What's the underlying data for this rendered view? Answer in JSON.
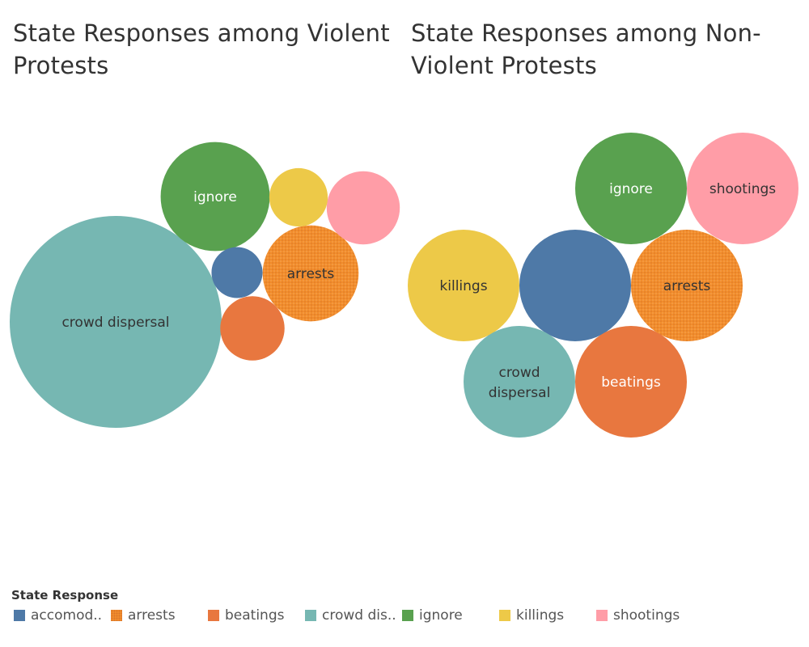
{
  "titles": {
    "left": "State Responses among Violent Protests",
    "right": "State Responses among Non-Violent Protests"
  },
  "legend": {
    "title": "State Response",
    "items": [
      {
        "key": "accomodation",
        "label": "accomod..",
        "color": "#4e79a7",
        "pattern": false
      },
      {
        "key": "arrests",
        "label": "arrests",
        "color": "#f28e2b",
        "pattern": true
      },
      {
        "key": "beatings",
        "label": "beatings",
        "color": "#e8773f",
        "pattern": false
      },
      {
        "key": "crowd dispersal",
        "label": "crowd dis..",
        "color": "#76b7b2",
        "pattern": false
      },
      {
        "key": "ignore",
        "label": "ignore",
        "color": "#59a14f",
        "pattern": false
      },
      {
        "key": "killings",
        "label": "killings",
        "color": "#edc948",
        "pattern": false
      },
      {
        "key": "shootings",
        "label": "shootings",
        "color": "#ff9da7",
        "pattern": false
      }
    ]
  },
  "chart_data": [
    {
      "type": "bubble",
      "title": "State Responses among Violent Protests",
      "series": [
        {
          "category": "crowd dispersal",
          "value": 1.0,
          "label": "crowd dispersal"
        },
        {
          "category": "ignore",
          "value": 0.265,
          "label": "ignore"
        },
        {
          "category": "arrests",
          "value": 0.205,
          "label": "arrests"
        },
        {
          "category": "shootings",
          "value": 0.119,
          "label": ""
        },
        {
          "category": "beatings",
          "value": 0.092,
          "label": ""
        },
        {
          "category": "killings",
          "value": 0.076,
          "label": ""
        },
        {
          "category": "accomodation",
          "value": 0.058,
          "label": ""
        }
      ]
    },
    {
      "type": "bubble",
      "title": "State Responses among Non-Violent Protests",
      "series": [
        {
          "category": "ignore",
          "value": 1.0,
          "label": "ignore"
        },
        {
          "category": "shootings",
          "value": 1.0,
          "label": "shootings"
        },
        {
          "category": "killings",
          "value": 1.0,
          "label": "killings"
        },
        {
          "category": "accomodation",
          "value": 1.0,
          "label": ""
        },
        {
          "category": "arrests",
          "value": 1.0,
          "label": "arrests"
        },
        {
          "category": "crowd dispersal",
          "value": 1.0,
          "label": "crowd dispersal"
        },
        {
          "category": "beatings",
          "value": 1.0,
          "label": "beatings"
        }
      ]
    }
  ]
}
